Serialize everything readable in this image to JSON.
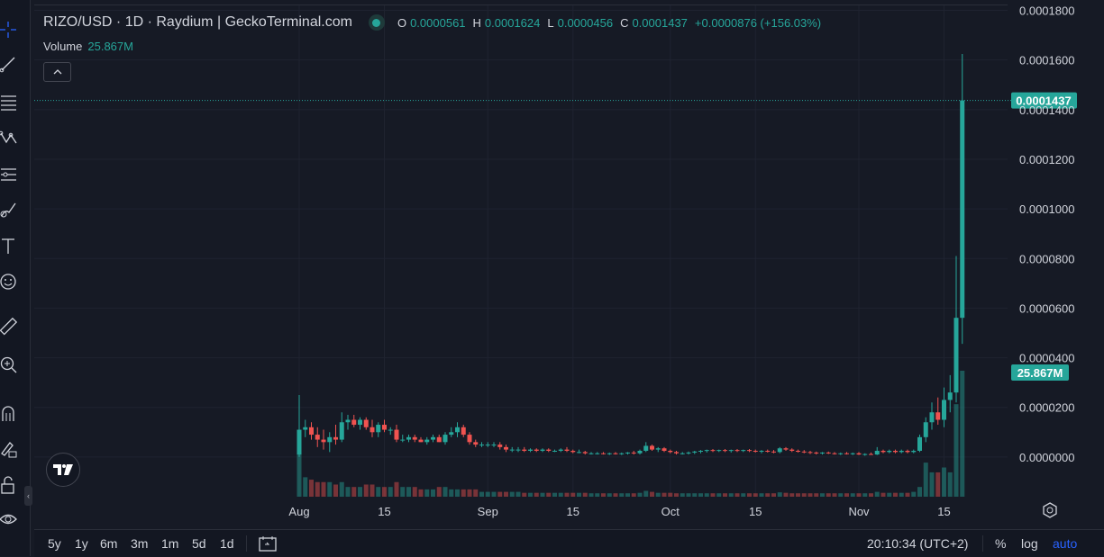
{
  "legend": {
    "symbol": "RIZO/USD",
    "interval": "1D",
    "exchange": "Raydium",
    "source": "GeckoTerminal.com",
    "open_label": "O",
    "open": "0.0000561",
    "high_label": "H",
    "high": "0.0001624",
    "low_label": "L",
    "low": "0.0000456",
    "close_label": "C",
    "close": "0.0001437",
    "change": "+0.0000876 (+156.03%)",
    "volume_label": "Volume",
    "volume": "25.867M"
  },
  "price_axis": {
    "ticks": [
      "0.0001800",
      "0.0001600",
      "0.0001400",
      "0.0001200",
      "0.0001000",
      "0.0000800",
      "0.0000600",
      "0.0000400",
      "0.0000200",
      "0.0000000"
    ],
    "current_price_label": "0.0001437",
    "current_volume_label": "25.867M"
  },
  "time_axis": {
    "ticks": [
      "Aug",
      "15",
      "Sep",
      "15",
      "Oct",
      "15",
      "Nov",
      "15"
    ]
  },
  "bottom_bar": {
    "ranges": [
      "5y",
      "1y",
      "6m",
      "3m",
      "1m",
      "5d",
      "1d"
    ],
    "clock": "20:10:34 (UTC+2)",
    "percent": "%",
    "log": "log",
    "auto": "auto"
  },
  "colors": {
    "background": "#161a25",
    "grid": "#1f2330",
    "up": "#26a69a",
    "down": "#ef5350",
    "text": "#d1d4dc",
    "accent": "#2962ff"
  },
  "icons": [
    "crosshair-icon",
    "trend-line-icon",
    "fib-icon",
    "pattern-icon",
    "forecast-icon",
    "brush-icon",
    "text-icon",
    "emoji-icon",
    "ruler-icon",
    "zoom-in-icon",
    "magnet-icon",
    "lock-draw-icon",
    "lock-icon",
    "eye-icon",
    "compare-icon",
    "settings-icon"
  ],
  "chart_data": {
    "type": "candlestick",
    "pair": "RIZO/USD",
    "interval": "1D",
    "ylim": [
      -1.6e-05,
      0.000182
    ],
    "x_tick_dates": [
      "2024-08-01",
      "2024-08-15",
      "2024-09-01",
      "2024-09-15",
      "2024-10-01",
      "2024-10-15",
      "2024-11-01",
      "2024-11-15"
    ],
    "last_candle": {
      "date": "2024-11-18",
      "open": 5.61e-05,
      "high": 0.0001624,
      "low": 4.56e-05,
      "close": 0.0001437,
      "volume": 25.867
    },
    "volume_unit": "M",
    "candles": [
      {
        "date": "2024-08-01",
        "o": 1e-06,
        "h": 2.5e-05,
        "l": 0.0,
        "c": 1.1e-05,
        "v": 10.0
      },
      {
        "date": "2024-08-02",
        "o": 1.1e-05,
        "h": 1.5e-05,
        "l": 8e-06,
        "c": 1.2e-05,
        "v": 4.0
      },
      {
        "date": "2024-08-03",
        "o": 1.2e-05,
        "h": 1.4e-05,
        "l": 7e-06,
        "c": 9e-06,
        "v": 3.5
      },
      {
        "date": "2024-08-04",
        "o": 9e-06,
        "h": 1.2e-05,
        "l": 4e-06,
        "c": 7e-06,
        "v": 3.0
      },
      {
        "date": "2024-08-05",
        "o": 7e-06,
        "h": 1.1e-05,
        "l": 3e-06,
        "c": 6e-06,
        "v": 3.0
      },
      {
        "date": "2024-08-06",
        "o": 6e-06,
        "h": 1e-05,
        "l": 2e-06,
        "c": 8e-06,
        "v": 3.0
      },
      {
        "date": "2024-08-07",
        "o": 8e-06,
        "h": 1.3e-05,
        "l": 5e-06,
        "c": 7e-06,
        "v": 2.5
      },
      {
        "date": "2024-08-08",
        "o": 7e-06,
        "h": 1.8e-05,
        "l": 6e-06,
        "c": 1.4e-05,
        "v": 3.0
      },
      {
        "date": "2024-08-09",
        "o": 1.4e-05,
        "h": 1.7e-05,
        "l": 1.1e-05,
        "c": 1.5e-05,
        "v": 2.0
      },
      {
        "date": "2024-08-10",
        "o": 1.5e-05,
        "h": 1.7e-05,
        "l": 1.2e-05,
        "c": 1.3e-05,
        "v": 2.0
      },
      {
        "date": "2024-08-11",
        "o": 1.3e-05,
        "h": 1.6e-05,
        "l": 1.1e-05,
        "c": 1.5e-05,
        "v": 2.0
      },
      {
        "date": "2024-08-12",
        "o": 1.5e-05,
        "h": 1.6e-05,
        "l": 1.1e-05,
        "c": 1.2e-05,
        "v": 2.5
      },
      {
        "date": "2024-08-13",
        "o": 1.2e-05,
        "h": 1.5e-05,
        "l": 8e-06,
        "c": 1e-05,
        "v": 2.5
      },
      {
        "date": "2024-08-14",
        "o": 1e-05,
        "h": 1.4e-05,
        "l": 8e-06,
        "c": 1.3e-05,
        "v": 2.0
      },
      {
        "date": "2024-08-15",
        "o": 1.3e-05,
        "h": 1.5e-05,
        "l": 1e-05,
        "c": 1.1e-05,
        "v": 2.0
      },
      {
        "date": "2024-08-16",
        "o": 1.1e-05,
        "h": 1.2e-05,
        "l": 9e-06,
        "c": 1.1e-05,
        "v": 2.0
      },
      {
        "date": "2024-08-17",
        "o": 1.1e-05,
        "h": 1.3e-05,
        "l": 6e-06,
        "c": 7e-06,
        "v": 3.0
      },
      {
        "date": "2024-08-18",
        "o": 7e-06,
        "h": 9e-06,
        "l": 6e-06,
        "c": 7e-06,
        "v": 2.0
      },
      {
        "date": "2024-08-19",
        "o": 7e-06,
        "h": 9e-06,
        "l": 6e-06,
        "c": 8e-06,
        "v": 2.0
      },
      {
        "date": "2024-08-20",
        "o": 8e-06,
        "h": 9e-06,
        "l": 6e-06,
        "c": 7e-06,
        "v": 2.0
      },
      {
        "date": "2024-08-21",
        "o": 7e-06,
        "h": 8e-06,
        "l": 6e-06,
        "c": 6e-06,
        "v": 1.5
      },
      {
        "date": "2024-08-22",
        "o": 6e-06,
        "h": 8e-06,
        "l": 5e-06,
        "c": 7e-06,
        "v": 1.5
      },
      {
        "date": "2024-08-23",
        "o": 7e-06,
        "h": 9e-06,
        "l": 6e-06,
        "c": 8e-06,
        "v": 1.5
      },
      {
        "date": "2024-08-24",
        "o": 8e-06,
        "h": 9e-06,
        "l": 6e-06,
        "c": 6e-06,
        "v": 2.0
      },
      {
        "date": "2024-08-25",
        "o": 6e-06,
        "h": 1e-05,
        "l": 5e-06,
        "c": 9e-06,
        "v": 2.0
      },
      {
        "date": "2024-08-26",
        "o": 9e-06,
        "h": 1.2e-05,
        "l": 8e-06,
        "c": 1e-05,
        "v": 1.5
      },
      {
        "date": "2024-08-27",
        "o": 1e-05,
        "h": 1.4e-05,
        "l": 8e-06,
        "c": 1.2e-05,
        "v": 1.5
      },
      {
        "date": "2024-08-28",
        "o": 1.2e-05,
        "h": 1.3e-05,
        "l": 8e-06,
        "c": 9e-06,
        "v": 1.5
      },
      {
        "date": "2024-08-29",
        "o": 9e-06,
        "h": 1e-05,
        "l": 5e-06,
        "c": 6e-06,
        "v": 1.5
      },
      {
        "date": "2024-08-30",
        "o": 6e-06,
        "h": 7e-06,
        "l": 4e-06,
        "c": 5e-06,
        "v": 1.5
      },
      {
        "date": "2024-08-31",
        "o": 5e-06,
        "h": 6e-06,
        "l": 4e-06,
        "c": 5e-06,
        "v": 1.0
      },
      {
        "date": "2024-09-01",
        "o": 5e-06,
        "h": 6e-06,
        "l": 4e-06,
        "c": 5e-06,
        "v": 1.0
      },
      {
        "date": "2024-09-02",
        "o": 5e-06,
        "h": 6e-06,
        "l": 4e-06,
        "c": 5e-06,
        "v": 1.0
      },
      {
        "date": "2024-09-03",
        "o": 5e-06,
        "h": 6e-06,
        "l": 3e-06,
        "c": 4e-06,
        "v": 1.0
      },
      {
        "date": "2024-09-04",
        "o": 4e-06,
        "h": 5e-06,
        "l": 2e-06,
        "c": 3e-06,
        "v": 1.0
      },
      {
        "date": "2024-09-05",
        "o": 3e-06,
        "h": 4e-06,
        "l": 2e-06,
        "c": 3e-06,
        "v": 1.0
      },
      {
        "date": "2024-09-06",
        "o": 3e-06,
        "h": 4e-06,
        "l": 2e-06,
        "c": 3e-06,
        "v": 1.0
      },
      {
        "date": "2024-09-07",
        "o": 3e-06,
        "h": 4e-06,
        "l": 2e-06,
        "c": 2.5e-06,
        "v": 0.8
      },
      {
        "date": "2024-09-08",
        "o": 2.5e-06,
        "h": 3.5e-06,
        "l": 2e-06,
        "c": 3e-06,
        "v": 0.8
      },
      {
        "date": "2024-09-09",
        "o": 3e-06,
        "h": 3.5e-06,
        "l": 2e-06,
        "c": 2.5e-06,
        "v": 0.8
      },
      {
        "date": "2024-09-10",
        "o": 2.5e-06,
        "h": 3.5e-06,
        "l": 2e-06,
        "c": 3e-06,
        "v": 0.8
      },
      {
        "date": "2024-09-11",
        "o": 3e-06,
        "h": 3.5e-06,
        "l": 2e-06,
        "c": 2.5e-06,
        "v": 0.8
      },
      {
        "date": "2024-09-12",
        "o": 2.5e-06,
        "h": 3e-06,
        "l": 2e-06,
        "c": 2.5e-06,
        "v": 0.8
      },
      {
        "date": "2024-09-13",
        "o": 2.5e-06,
        "h": 3.5e-06,
        "l": 2e-06,
        "c": 3e-06,
        "v": 0.8
      },
      {
        "date": "2024-09-14",
        "o": 3e-06,
        "h": 4e-06,
        "l": 2e-06,
        "c": 2.5e-06,
        "v": 0.8
      },
      {
        "date": "2024-09-15",
        "o": 2.5e-06,
        "h": 3e-06,
        "l": 1.5e-06,
        "c": 2e-06,
        "v": 0.8
      },
      {
        "date": "2024-09-16",
        "o": 2e-06,
        "h": 3e-06,
        "l": 1.5e-06,
        "c": 2e-06,
        "v": 0.8
      },
      {
        "date": "2024-09-17",
        "o": 2e-06,
        "h": 2.5e-06,
        "l": 1e-06,
        "c": 1.5e-06,
        "v": 0.8
      },
      {
        "date": "2024-09-18",
        "o": 1.5e-06,
        "h": 2e-06,
        "l": 1e-06,
        "c": 1.5e-06,
        "v": 0.7
      },
      {
        "date": "2024-09-19",
        "o": 1.5e-06,
        "h": 2e-06,
        "l": 1e-06,
        "c": 1.5e-06,
        "v": 0.7
      },
      {
        "date": "2024-09-20",
        "o": 1.5e-06,
        "h": 2e-06,
        "l": 1e-06,
        "c": 1.2e-06,
        "v": 0.7
      },
      {
        "date": "2024-09-21",
        "o": 1.2e-06,
        "h": 1.8e-06,
        "l": 8e-07,
        "c": 1.5e-06,
        "v": 0.7
      },
      {
        "date": "2024-09-22",
        "o": 1.5e-06,
        "h": 2e-06,
        "l": 1e-06,
        "c": 1.2e-06,
        "v": 0.7
      },
      {
        "date": "2024-09-23",
        "o": 1.2e-06,
        "h": 1.8e-06,
        "l": 8e-07,
        "c": 1.5e-06,
        "v": 0.7
      },
      {
        "date": "2024-09-24",
        "o": 1.5e-06,
        "h": 2e-06,
        "l": 1e-06,
        "c": 1.8e-06,
        "v": 0.7
      },
      {
        "date": "2024-09-25",
        "o": 1.8e-06,
        "h": 2.5e-06,
        "l": 1e-06,
        "c": 1.5e-06,
        "v": 0.7
      },
      {
        "date": "2024-09-26",
        "o": 1.5e-06,
        "h": 3e-06,
        "l": 1e-06,
        "c": 2.5e-06,
        "v": 0.8
      },
      {
        "date": "2024-09-27",
        "o": 2.5e-06,
        "h": 6e-06,
        "l": 2e-06,
        "c": 4.5e-06,
        "v": 1.2
      },
      {
        "date": "2024-09-28",
        "o": 4.5e-06,
        "h": 5e-06,
        "l": 2.5e-06,
        "c": 3e-06,
        "v": 1.0
      },
      {
        "date": "2024-09-29",
        "o": 3e-06,
        "h": 4e-06,
        "l": 2e-06,
        "c": 3.5e-06,
        "v": 0.8
      },
      {
        "date": "2024-09-30",
        "o": 3.5e-06,
        "h": 4e-06,
        "l": 2e-06,
        "c": 2.5e-06,
        "v": 0.8
      },
      {
        "date": "2024-10-01",
        "o": 2.5e-06,
        "h": 3e-06,
        "l": 1.5e-06,
        "c": 2e-06,
        "v": 0.8
      },
      {
        "date": "2024-10-02",
        "o": 2e-06,
        "h": 2.5e-06,
        "l": 1e-06,
        "c": 1.5e-06,
        "v": 0.7
      },
      {
        "date": "2024-10-03",
        "o": 1.5e-06,
        "h": 2e-06,
        "l": 1e-06,
        "c": 1.5e-06,
        "v": 0.7
      },
      {
        "date": "2024-10-04",
        "o": 1.5e-06,
        "h": 2.2e-06,
        "l": 1e-06,
        "c": 1.8e-06,
        "v": 0.7
      },
      {
        "date": "2024-10-05",
        "o": 1.8e-06,
        "h": 2.5e-06,
        "l": 1.2e-06,
        "c": 2.2e-06,
        "v": 0.7
      },
      {
        "date": "2024-10-06",
        "o": 2.2e-06,
        "h": 2.8e-06,
        "l": 1.5e-06,
        "c": 2.5e-06,
        "v": 0.7
      },
      {
        "date": "2024-10-07",
        "o": 2.5e-06,
        "h": 3e-06,
        "l": 1.8e-06,
        "c": 2.8e-06,
        "v": 0.7
      },
      {
        "date": "2024-10-08",
        "o": 2.8e-06,
        "h": 3.2e-06,
        "l": 2e-06,
        "c": 2.5e-06,
        "v": 0.7
      },
      {
        "date": "2024-10-09",
        "o": 2.5e-06,
        "h": 3e-06,
        "l": 2e-06,
        "c": 2.8e-06,
        "v": 0.7
      },
      {
        "date": "2024-10-10",
        "o": 2.8e-06,
        "h": 3.2e-06,
        "l": 2e-06,
        "c": 2.5e-06,
        "v": 0.7
      },
      {
        "date": "2024-10-11",
        "o": 2.5e-06,
        "h": 3e-06,
        "l": 1.8e-06,
        "c": 2.8e-06,
        "v": 0.7
      },
      {
        "date": "2024-10-12",
        "o": 2.8e-06,
        "h": 3.2e-06,
        "l": 2e-06,
        "c": 2.5e-06,
        "v": 0.7
      },
      {
        "date": "2024-10-13",
        "o": 2.5e-06,
        "h": 3e-06,
        "l": 2e-06,
        "c": 2.8e-06,
        "v": 0.7
      },
      {
        "date": "2024-10-14",
        "o": 2.8e-06,
        "h": 3.2e-06,
        "l": 2e-06,
        "c": 2.5e-06,
        "v": 0.7
      },
      {
        "date": "2024-10-15",
        "o": 2.5e-06,
        "h": 3e-06,
        "l": 1.8e-06,
        "c": 2.2e-06,
        "v": 0.7
      },
      {
        "date": "2024-10-16",
        "o": 2.2e-06,
        "h": 2.8e-06,
        "l": 1.5e-06,
        "c": 2.5e-06,
        "v": 0.7
      },
      {
        "date": "2024-10-17",
        "o": 2.5e-06,
        "h": 3e-06,
        "l": 1.8e-06,
        "c": 2.2e-06,
        "v": 0.7
      },
      {
        "date": "2024-10-18",
        "o": 2.2e-06,
        "h": 2.8e-06,
        "l": 1.5e-06,
        "c": 2e-06,
        "v": 0.7
      },
      {
        "date": "2024-10-19",
        "o": 2e-06,
        "h": 4e-06,
        "l": 1.5e-06,
        "c": 3.5e-06,
        "v": 0.9
      },
      {
        "date": "2024-10-20",
        "o": 3.5e-06,
        "h": 4e-06,
        "l": 2.5e-06,
        "c": 3e-06,
        "v": 0.8
      },
      {
        "date": "2024-10-21",
        "o": 3e-06,
        "h": 3.5e-06,
        "l": 2e-06,
        "c": 2.5e-06,
        "v": 0.7
      },
      {
        "date": "2024-10-22",
        "o": 2.5e-06,
        "h": 3e-06,
        "l": 1.8e-06,
        "c": 2.2e-06,
        "v": 0.7
      },
      {
        "date": "2024-10-23",
        "o": 2.2e-06,
        "h": 2.8e-06,
        "l": 1.5e-06,
        "c": 2e-06,
        "v": 0.7
      },
      {
        "date": "2024-10-24",
        "o": 2e-06,
        "h": 2.5e-06,
        "l": 1.2e-06,
        "c": 1.8e-06,
        "v": 0.7
      },
      {
        "date": "2024-10-25",
        "o": 1.8e-06,
        "h": 2.2e-06,
        "l": 1e-06,
        "c": 1.5e-06,
        "v": 0.7
      },
      {
        "date": "2024-10-26",
        "o": 1.5e-06,
        "h": 2e-06,
        "l": 1e-06,
        "c": 1.8e-06,
        "v": 0.7
      },
      {
        "date": "2024-10-27",
        "o": 1.8e-06,
        "h": 2.2e-06,
        "l": 1.2e-06,
        "c": 1.5e-06,
        "v": 0.7
      },
      {
        "date": "2024-10-28",
        "o": 1.5e-06,
        "h": 2e-06,
        "l": 1e-06,
        "c": 1.2e-06,
        "v": 0.7
      },
      {
        "date": "2024-10-29",
        "o": 1.2e-06,
        "h": 1.8e-06,
        "l": 8e-07,
        "c": 1.5e-06,
        "v": 0.7
      },
      {
        "date": "2024-10-30",
        "o": 1.5e-06,
        "h": 2e-06,
        "l": 1e-06,
        "c": 1.2e-06,
        "v": 0.7
      },
      {
        "date": "2024-10-31",
        "o": 1.2e-06,
        "h": 1.8e-06,
        "l": 8e-07,
        "c": 1.5e-06,
        "v": 0.7
      },
      {
        "date": "2024-11-01",
        "o": 1.5e-06,
        "h": 2e-06,
        "l": 8e-07,
        "c": 1e-06,
        "v": 0.7
      },
      {
        "date": "2024-11-02",
        "o": 1e-06,
        "h": 1.5e-06,
        "l": 5e-07,
        "c": 1.2e-06,
        "v": 0.7
      },
      {
        "date": "2024-11-03",
        "o": 1.2e-06,
        "h": 1.8e-06,
        "l": 8e-07,
        "c": 1e-06,
        "v": 0.7
      },
      {
        "date": "2024-11-04",
        "o": 1e-06,
        "h": 4e-06,
        "l": 8e-07,
        "c": 2.5e-06,
        "v": 1.0
      },
      {
        "date": "2024-11-05",
        "o": 2.5e-06,
        "h": 3e-06,
        "l": 1.5e-06,
        "c": 2e-06,
        "v": 0.8
      },
      {
        "date": "2024-11-06",
        "o": 2e-06,
        "h": 3e-06,
        "l": 1.5e-06,
        "c": 2.5e-06,
        "v": 0.8
      },
      {
        "date": "2024-11-07",
        "o": 2.5e-06,
        "h": 3e-06,
        "l": 1.5e-06,
        "c": 2e-06,
        "v": 0.8
      },
      {
        "date": "2024-11-08",
        "o": 2e-06,
        "h": 3e-06,
        "l": 1.5e-06,
        "c": 2.5e-06,
        "v": 0.8
      },
      {
        "date": "2024-11-09",
        "o": 2.5e-06,
        "h": 3e-06,
        "l": 1.5e-06,
        "c": 2e-06,
        "v": 0.8
      },
      {
        "date": "2024-11-10",
        "o": 2e-06,
        "h": 3e-06,
        "l": 1.5e-06,
        "c": 2.5e-06,
        "v": 1.0
      },
      {
        "date": "2024-11-11",
        "o": 2.5e-06,
        "h": 9e-06,
        "l": 2e-06,
        "c": 8e-06,
        "v": 2.0
      },
      {
        "date": "2024-11-12",
        "o": 8e-06,
        "h": 1.6e-05,
        "l": 6e-06,
        "c": 1.4e-05,
        "v": 7.0
      },
      {
        "date": "2024-11-13",
        "o": 1.4e-05,
        "h": 2.2e-05,
        "l": 1.1e-05,
        "c": 1.8e-05,
        "v": 5.0
      },
      {
        "date": "2024-11-14",
        "o": 1.8e-05,
        "h": 2.4e-05,
        "l": 1.3e-05,
        "c": 1.5e-05,
        "v": 5.0
      },
      {
        "date": "2024-11-15",
        "o": 1.5e-05,
        "h": 2.8e-05,
        "l": 1.2e-05,
        "c": 2.3e-05,
        "v": 6.0
      },
      {
        "date": "2024-11-16",
        "o": 2.3e-05,
        "h": 3.3e-05,
        "l": 1.8e-05,
        "c": 2.6e-05,
        "v": 5.0
      },
      {
        "date": "2024-11-17",
        "o": 2.6e-05,
        "h": 8.1e-05,
        "l": 2.2e-05,
        "c": 5.61e-05,
        "v": 19.0
      },
      {
        "date": "2024-11-18",
        "o": 5.61e-05,
        "h": 0.0001624,
        "l": 4.56e-05,
        "c": 0.0001437,
        "v": 25.867
      }
    ]
  }
}
